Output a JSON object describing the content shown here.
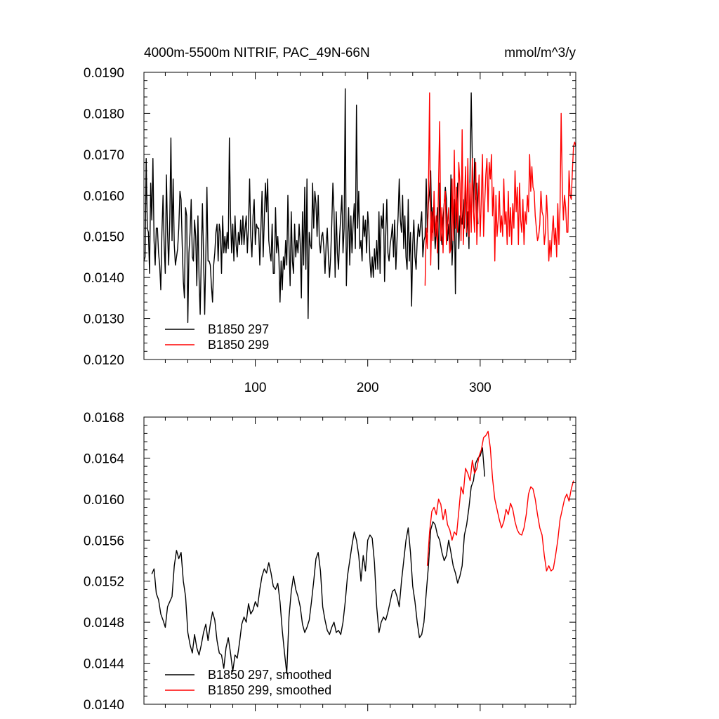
{
  "chart_data": [
    {
      "type": "line",
      "title_left": "4000m-5500m NITRIF, PAC_49N-66N",
      "title_right": "mmol/m^3/y",
      "xlabel": "",
      "ylabel": "",
      "xlim": [
        1,
        385
      ],
      "ylim": [
        0.012,
        0.019
      ],
      "xticks": [
        100,
        200,
        300
      ],
      "xtick_labels": [
        "100",
        "200",
        "300"
      ],
      "yticks": [
        0.012,
        0.013,
        0.014,
        0.015,
        0.016,
        0.017,
        0.018,
        0.019
      ],
      "ytick_labels": [
        "0.0120",
        "0.0130",
        "0.0140",
        "0.0150",
        "0.0160",
        "0.0170",
        "0.0180",
        "0.0190"
      ],
      "legend_position": "bottom-left",
      "series": [
        {
          "name": "B1850 297",
          "color": "#000000",
          "x_start": 1,
          "values": [
            0.0144,
            0.0145,
            0.0169,
            0.0152,
            0.0151,
            0.0141,
            0.0163,
            0.0154,
            0.0169,
            0.0149,
            0.0143,
            0.0152,
            0.0152,
            0.0146,
            0.0143,
            0.0137,
            0.0151,
            0.016,
            0.0148,
            0.0141,
            0.0165,
            0.0151,
            0.0143,
            0.0154,
            0.0174,
            0.0149,
            0.0164,
            0.0148,
            0.0143,
            0.0145,
            0.0147,
            0.0152,
            0.0161,
            0.0159,
            0.0148,
            0.0139,
            0.0135,
            0.0157,
            0.0155,
            0.0129,
            0.0146,
            0.0151,
            0.0159,
            0.0145,
            0.0144,
            0.0154,
            0.015,
            0.0138,
            0.0155,
            0.014,
            0.0131,
            0.0145,
            0.0158,
            0.0145,
            0.0131,
            0.0145,
            0.0162,
            0.0144,
            0.0144,
            0.0143,
            0.0138,
            0.0134,
            0.0143,
            0.0146,
            0.0151,
            0.0153,
            0.0144,
            0.0153,
            0.0151,
            0.0141,
            0.0155,
            0.0146,
            0.015,
            0.0146,
            0.0151,
            0.0147,
            0.0174,
            0.0155,
            0.0146,
            0.0153,
            0.0144,
            0.0155,
            0.0148,
            0.0145,
            0.0151,
            0.0148,
            0.0154,
            0.0148,
            0.0155,
            0.0148,
            0.0152,
            0.0155,
            0.0146,
            0.0153,
            0.0164,
            0.015,
            0.0145,
            0.0155,
            0.0159,
            0.0148,
            0.0153,
            0.0152,
            0.0152,
            0.0143,
            0.0152,
            0.0161,
            0.0145,
            0.0154,
            0.0163,
            0.0156,
            0.0164,
            0.0149,
            0.0146,
            0.0144,
            0.0153,
            0.0141,
            0.0141,
            0.0157,
            0.0146,
            0.015,
            0.0145,
            0.0134,
            0.0144,
            0.0137,
            0.0145,
            0.0142,
            0.0149,
            0.0143,
            0.016,
            0.0148,
            0.0138,
            0.0156,
            0.0144,
            0.0141,
            0.0153,
            0.0145,
            0.0149,
            0.0146,
            0.0153,
            0.0148,
            0.0135,
            0.0156,
            0.0143,
            0.0162,
            0.0142,
            0.0164,
            0.013,
            0.0151,
            0.0148,
            0.0147,
            0.0163,
            0.0152,
            0.0161,
            0.0158,
            0.015,
            0.016,
            0.0149,
            0.0146,
            0.015,
            0.0151,
            0.0147,
            0.0141,
            0.0148,
            0.0152,
            0.0145,
            0.014,
            0.0145,
            0.0153,
            0.0163,
            0.0156,
            0.014,
            0.0156,
            0.0146,
            0.0142,
            0.015,
            0.0155,
            0.016,
            0.0146,
            0.0152,
            0.0186,
            0.0138,
            0.0149,
            0.0157,
            0.0143,
            0.0155,
            0.0146,
            0.0153,
            0.0158,
            0.0147,
            0.0182,
            0.0152,
            0.0161,
            0.0147,
            0.0149,
            0.0144,
            0.0155,
            0.015,
            0.0154,
            0.0146,
            0.0156,
            0.0152,
            0.0144,
            0.014,
            0.0145,
            0.014,
            0.0147,
            0.0142,
            0.0149,
            0.0142,
            0.0156,
            0.0141,
            0.0155,
            0.0152,
            0.0158,
            0.0139,
            0.015,
            0.0159,
            0.0146,
            0.0144,
            0.0148,
            0.015,
            0.0153,
            0.0145,
            0.0154,
            0.0142,
            0.0149,
            0.0155,
            0.0164,
            0.0154,
            0.0151,
            0.016,
            0.0147,
            0.0155,
            0.0145,
            0.0142,
            0.0159,
            0.0144,
            0.0151,
            0.0133,
            0.0148,
            0.0154,
            0.0145,
            0.0142,
            0.0149,
            0.0153,
            0.015,
            0.0153,
            0.0156,
            0.0145,
            0.0149,
            0.015,
            0.0164,
            0.0151,
            0.0158,
            0.0161,
            0.0166,
            0.0151,
            0.0157,
            0.0154,
            0.0147,
            0.0152,
            0.0157,
            0.0142,
            0.0163,
            0.0151,
            0.0148,
            0.0154,
            0.0158,
            0.0162,
            0.0159,
            0.0149,
            0.0153,
            0.0146,
            0.0165,
            0.0143,
            0.015,
            0.0159,
            0.0136,
            0.0158,
            0.0163,
            0.0147,
            0.0155,
            0.0155,
            0.0153,
            0.0159,
            0.0152,
            0.0165,
            0.015,
            0.0156,
            0.0147,
            0.0166,
            0.0185,
            0.0168,
            0.0156,
            0.0169,
            0.0159,
            0.0163,
            0.0153
          ]
        },
        {
          "name": "B1850 299",
          "color": "#ff0000",
          "x_start": 251,
          "values": [
            0.0138,
            0.0152,
            0.0147,
            0.0161,
            0.0185,
            0.0143,
            0.0156,
            0.0149,
            0.0161,
            0.015,
            0.0155,
            0.0146,
            0.0163,
            0.0178,
            0.0149,
            0.0157,
            0.0146,
            0.0158,
            0.0161,
            0.0148,
            0.0153,
            0.0157,
            0.0146,
            0.0147,
            0.0164,
            0.0149,
            0.0171,
            0.0152,
            0.0162,
            0.0151,
            0.0168,
            0.0163,
            0.0149,
            0.0176,
            0.0148,
            0.0156,
            0.0167,
            0.0151,
            0.0169,
            0.015,
            0.0163,
            0.0151,
            0.0169,
            0.0156,
            0.0151,
            0.0168,
            0.0148,
            0.0157,
            0.0165,
            0.015,
            0.0159,
            0.017,
            0.015,
            0.0158,
            0.0165,
            0.0169,
            0.0156,
            0.0168,
            0.0164,
            0.017,
            0.0155,
            0.0162,
            0.0144,
            0.016,
            0.015,
            0.0154,
            0.0161,
            0.0151,
            0.0155,
            0.015,
            0.0164,
            0.0153,
            0.0156,
            0.0148,
            0.0161,
            0.015,
            0.0157,
            0.0148,
            0.0158,
            0.0152,
            0.0166,
            0.0156,
            0.0162,
            0.0148,
            0.0163,
            0.0154,
            0.0151,
            0.0159,
            0.0148,
            0.0156,
            0.0153,
            0.016,
            0.0156,
            0.017,
            0.0161,
            0.0167,
            0.0162,
            0.0161,
            0.0155,
            0.0152,
            0.0149,
            0.015,
            0.0153,
            0.0161,
            0.0156,
            0.0155,
            0.0148,
            0.0151,
            0.016,
            0.0154,
            0.0144,
            0.0149,
            0.0145,
            0.0151,
            0.0155,
            0.0148,
            0.0152,
            0.0145,
            0.0158,
            0.0148,
            0.0157,
            0.018,
            0.0162,
            0.0154,
            0.016,
            0.0157,
            0.0151,
            0.0151,
            0.0166,
            0.016,
            0.0159,
            0.0166,
            0.0172,
            0.0173,
            0.0172
          ]
        }
      ]
    },
    {
      "type": "line",
      "title_left": "",
      "title_right": "",
      "xlabel": "",
      "ylabel": "",
      "xlim": [
        1,
        385
      ],
      "ylim": [
        0.014,
        0.0168
      ],
      "xticks": [
        100,
        200,
        300
      ],
      "xtick_labels": [],
      "yticks": [
        0.014,
        0.0144,
        0.0148,
        0.0152,
        0.0156,
        0.016,
        0.0164,
        0.0168
      ],
      "ytick_labels": [
        "0.0140",
        "0.0144",
        "0.0148",
        "0.0152",
        "0.0156",
        "0.0160",
        "0.0164",
        "0.0168"
      ],
      "legend_position": "bottom-left",
      "series": [
        {
          "name": "B1850 297, smoothed",
          "color": "#000000",
          "x": [
            8,
            10,
            12,
            14,
            16,
            18,
            20,
            22,
            24,
            26,
            28,
            30,
            32,
            34,
            36,
            38,
            40,
            42,
            44,
            46,
            48,
            50,
            52,
            54,
            56,
            58,
            60,
            62,
            64,
            66,
            68,
            70,
            72,
            74,
            76,
            78,
            80,
            82,
            84,
            86,
            88,
            90,
            92,
            94,
            96,
            98,
            100,
            102,
            104,
            106,
            108,
            110,
            112,
            114,
            116,
            118,
            120,
            122,
            124,
            126,
            128,
            130,
            132,
            134,
            136,
            138,
            140,
            142,
            144,
            146,
            148,
            150,
            152,
            154,
            156,
            158,
            160,
            162,
            164,
            166,
            168,
            170,
            172,
            174,
            176,
            178,
            180,
            182,
            184,
            186,
            188,
            190,
            192,
            194,
            196,
            198,
            200,
            202,
            204,
            206,
            208,
            210,
            212,
            214,
            216,
            218,
            220,
            222,
            224,
            226,
            228,
            230,
            232,
            234,
            236,
            238,
            240,
            242,
            244,
            246,
            248,
            250,
            252,
            254,
            256,
            258,
            260,
            262,
            264,
            266,
            268,
            270,
            272,
            274,
            276,
            278,
            280,
            282,
            284,
            286,
            288,
            290,
            292,
            294,
            296,
            298,
            300,
            302,
            304
          ],
          "values": [
            0.01527,
            0.01532,
            0.01508,
            0.01502,
            0.01488,
            0.01482,
            0.01475,
            0.01495,
            0.015,
            0.01505,
            0.01535,
            0.0155,
            0.01542,
            0.01548,
            0.0152,
            0.01505,
            0.0147,
            0.01458,
            0.0145,
            0.01468,
            0.01455,
            0.01448,
            0.01458,
            0.0147,
            0.01478,
            0.01462,
            0.01478,
            0.0149,
            0.01482,
            0.01462,
            0.0145,
            0.01448,
            0.01435,
            0.01455,
            0.01465,
            0.0145,
            0.01432,
            0.01448,
            0.01445,
            0.0146,
            0.01478,
            0.01485,
            0.0148,
            0.01498,
            0.01488,
            0.01492,
            0.015,
            0.01495,
            0.01512,
            0.01525,
            0.01532,
            0.01528,
            0.01538,
            0.01528,
            0.01515,
            0.01512,
            0.01518,
            0.015,
            0.01472,
            0.0145,
            0.0143,
            0.01485,
            0.0151,
            0.01525,
            0.01512,
            0.01505,
            0.01495,
            0.01478,
            0.0147,
            0.01475,
            0.01482,
            0.015,
            0.0152,
            0.01542,
            0.01548,
            0.0153,
            0.01495,
            0.01482,
            0.01472,
            0.01468,
            0.01475,
            0.0148,
            0.0147,
            0.01472,
            0.01468,
            0.0148,
            0.015,
            0.01525,
            0.0154,
            0.01555,
            0.01568,
            0.0156,
            0.01545,
            0.0152,
            0.01545,
            0.0153,
            0.0156,
            0.01565,
            0.01562,
            0.01538,
            0.01495,
            0.0147,
            0.0148,
            0.01485,
            0.01482,
            0.0149,
            0.015,
            0.0151,
            0.01512,
            0.01505,
            0.01495,
            0.0152,
            0.0154,
            0.0156,
            0.01572,
            0.01548,
            0.01515,
            0.015,
            0.0148,
            0.01465,
            0.01468,
            0.0148,
            0.01508,
            0.01535,
            0.0157,
            0.01578,
            0.01575,
            0.01565,
            0.0156,
            0.01548,
            0.0154,
            0.01545,
            0.0156,
            0.01548,
            0.01535,
            0.01528,
            0.01518,
            0.01525,
            0.01535,
            0.01565,
            0.01575,
            0.01592,
            0.01612,
            0.01618,
            0.01635,
            0.0164,
            0.01642,
            0.0165,
            0.01622
          ]
        },
        {
          "name": "B1850 299, smoothed",
          "color": "#ff0000",
          "x": [
            253,
            255,
            257,
            259,
            261,
            263,
            265,
            267,
            269,
            271,
            273,
            275,
            277,
            279,
            281,
            283,
            285,
            287,
            289,
            291,
            293,
            295,
            297,
            299,
            301,
            303,
            305,
            307,
            309,
            311,
            313,
            315,
            317,
            319,
            321,
            323,
            325,
            327,
            329,
            331,
            333,
            335,
            337,
            339,
            341,
            343,
            345,
            347,
            349,
            351,
            353,
            355,
            357,
            359,
            361,
            363,
            365,
            367,
            369,
            371,
            373,
            375,
            377,
            379,
            381,
            383
          ],
          "values": [
            0.01535,
            0.01568,
            0.01588,
            0.01592,
            0.01585,
            0.016,
            0.01595,
            0.0158,
            0.0159,
            0.01575,
            0.0157,
            0.0156,
            0.01568,
            0.01565,
            0.01588,
            0.01612,
            0.01605,
            0.0163,
            0.01625,
            0.01618,
            0.01638,
            0.01625,
            0.0163,
            0.01642,
            0.01648,
            0.0166,
            0.01662,
            0.01666,
            0.0165,
            0.0162,
            0.016,
            0.0159,
            0.0158,
            0.01572,
            0.01578,
            0.0159,
            0.01585,
            0.01596,
            0.0159,
            0.01578,
            0.0157,
            0.01566,
            0.01565,
            0.01572,
            0.01585,
            0.01605,
            0.01612,
            0.0161,
            0.016,
            0.01585,
            0.01572,
            0.01565,
            0.01545,
            0.0153,
            0.01535,
            0.0153,
            0.01532,
            0.01545,
            0.0156,
            0.0158,
            0.0159,
            0.016,
            0.01605,
            0.01598,
            0.0161,
            0.01618
          ]
        }
      ]
    }
  ]
}
